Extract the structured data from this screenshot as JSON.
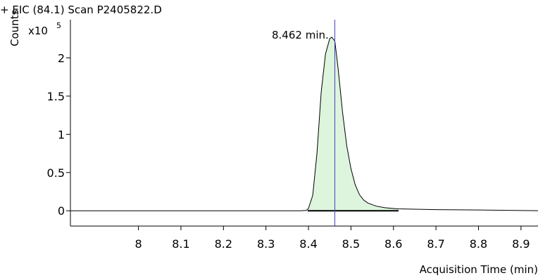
{
  "chart_data": {
    "type": "line",
    "title": "+ EIC (84.1) Scan P2405822.D",
    "ylabel": "Counts",
    "y_scale_label": "x10",
    "y_scale_exponent": "5",
    "xlabel": "Acquisition Time (min)",
    "xlim": [
      7.84,
      8.94
    ],
    "ylim": [
      -0.2,
      2.5
    ],
    "x_ticks": [
      "8",
      "8.1",
      "8.2",
      "8.3",
      "8.4",
      "8.5",
      "8.6",
      "8.7",
      "8.8",
      "8.9"
    ],
    "y_ticks": [
      "0",
      "0.5",
      "1",
      "1.5",
      "2"
    ],
    "annotation": "8.462 min.",
    "marker_x": 8.462,
    "integration": {
      "start": 8.398,
      "end": 8.612,
      "fill_color": "#ddf5dd"
    },
    "colors": {
      "marker": "#4040c0",
      "line": "#000000",
      "axis": "#000000"
    },
    "series": [
      {
        "x": [
          7.84,
          8.0,
          8.2,
          8.38,
          8.395,
          8.4,
          8.41,
          8.42,
          8.43,
          8.44,
          8.45,
          8.455,
          8.462,
          8.47,
          8.48,
          8.49,
          8.5,
          8.51,
          8.52,
          8.53,
          8.54,
          8.56,
          8.58,
          8.6,
          8.612,
          8.65,
          8.7,
          8.8,
          8.94
        ],
        "y": [
          0.0,
          0.0,
          0.0,
          0.0,
          0.005,
          0.03,
          0.2,
          0.75,
          1.55,
          2.05,
          2.25,
          2.27,
          2.22,
          1.85,
          1.3,
          0.85,
          0.55,
          0.34,
          0.21,
          0.14,
          0.1,
          0.06,
          0.04,
          0.03,
          0.025,
          0.02,
          0.015,
          0.01,
          0.0
        ]
      }
    ]
  }
}
